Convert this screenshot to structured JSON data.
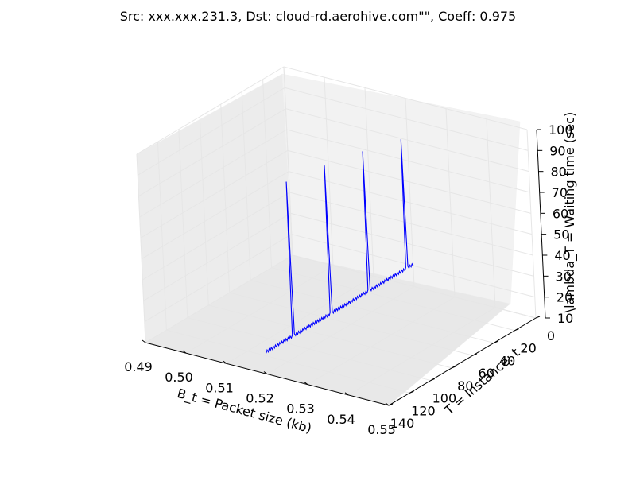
{
  "chart_data": {
    "type": "line3d",
    "title": "Src: xxx.xxx.231.3, Dst: cloud-rd.aerohive.com\"\", Coeff: 0.975",
    "xlabel": "B_t = Packet size (kb)",
    "ylabel": "T = Instance: t",
    "zlabel": "\\lambda_T = Waiting time (sec)",
    "xlim": [
      0.49,
      0.55
    ],
    "ylim": [
      0,
      140
    ],
    "zlim": [
      10,
      100
    ],
    "x_ticks": [
      "0.49",
      "0.50",
      "0.51",
      "0.52",
      "0.53",
      "0.54",
      "0.55"
    ],
    "y_ticks": [
      "0",
      "20",
      "40",
      "60",
      "80",
      "100",
      "120",
      "140"
    ],
    "z_ticks": [
      "10",
      "20",
      "30",
      "40",
      "50",
      "60",
      "70",
      "80",
      "90",
      "100"
    ],
    "grid": true,
    "series": [
      {
        "color": "#0000ff",
        "x_constant": 0.52,
        "baseline_low": 20.0,
        "baseline_high": 21.2,
        "spikes": [
          {
            "t": 6,
            "value": 82
          },
          {
            "t": 42,
            "value": 87
          },
          {
            "t": 78,
            "value": 91
          },
          {
            "t": 114,
            "value": 94
          }
        ],
        "t_range": [
          0,
          140
        ]
      }
    ],
    "line_color": "#0000ff"
  }
}
